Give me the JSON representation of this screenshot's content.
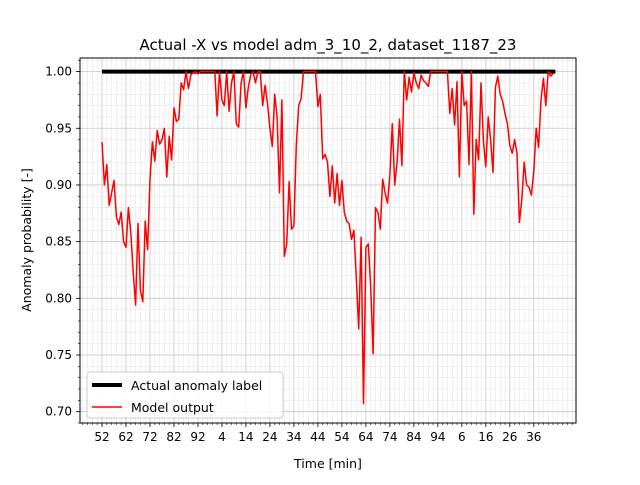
{
  "chart_data": {
    "type": "line",
    "title": "Actual -X vs model adm_3_10_2, dataset_1187_23",
    "xlabel": "Time [min]",
    "ylabel": "Anomaly probability [-]",
    "ylim": [
      0.69,
      1.012
    ],
    "grid": true,
    "legend_position": "lower-left",
    "x_tick_labels": [
      "52",
      "62",
      "72",
      "82",
      "92",
      "4",
      "14",
      "24",
      "34",
      "44",
      "54",
      "64",
      "74",
      "84",
      "94",
      "6",
      "16",
      "26",
      "36"
    ],
    "y_ticks": [
      "0.70",
      "0.75",
      "0.80",
      "0.85",
      "0.90",
      "0.95",
      "1.00"
    ],
    "y_tick_values": [
      0.7,
      0.75,
      0.8,
      0.85,
      0.9,
      0.95,
      1.0
    ],
    "series": [
      {
        "name": "Actual anomaly label",
        "color": "#000000",
        "values": [
          1,
          1,
          1,
          1,
          1,
          1,
          1,
          1,
          1,
          1,
          1,
          1,
          1,
          1,
          1,
          1,
          1,
          1,
          1,
          1,
          1,
          1,
          1,
          1,
          1,
          1,
          1,
          1,
          1,
          1,
          1,
          1,
          1,
          1,
          1,
          1,
          1,
          1,
          1,
          1,
          1,
          1,
          1,
          1,
          1,
          1,
          1,
          1,
          1,
          1,
          1,
          1,
          1,
          1,
          1,
          1,
          1,
          1,
          1,
          1,
          1,
          1,
          1,
          1,
          1,
          1,
          1,
          1,
          1,
          1,
          1,
          1,
          1,
          1,
          1,
          1,
          1,
          1,
          1,
          1,
          1,
          1,
          1,
          1,
          1,
          1,
          1,
          1,
          1,
          1,
          1,
          1,
          1,
          1,
          1,
          1,
          1,
          1,
          1,
          1,
          1,
          1,
          1,
          1,
          1,
          1,
          1,
          1,
          1,
          1,
          1,
          1,
          1,
          1,
          1,
          1,
          1,
          1,
          1,
          1,
          1,
          1,
          1,
          1,
          1,
          1,
          1,
          1,
          1,
          1,
          1,
          1,
          1,
          1,
          1,
          1,
          1,
          1,
          1,
          1,
          1,
          1,
          1,
          1,
          1,
          1,
          1,
          1,
          1,
          1,
          1,
          1,
          1,
          1,
          1,
          1,
          1,
          1,
          1,
          1,
          1,
          1,
          1,
          1,
          1,
          1,
          1,
          1,
          1,
          1,
          1,
          1,
          1,
          1,
          1,
          1,
          1,
          1,
          1,
          1,
          1,
          1,
          1,
          1,
          1,
          1,
          1,
          1,
          1,
          1
        ]
      },
      {
        "name": "Model output",
        "color": "#ff0000",
        "values": [
          0.938,
          0.9,
          0.918,
          0.882,
          0.893,
          0.904,
          0.872,
          0.865,
          0.876,
          0.85,
          0.845,
          0.88,
          0.858,
          0.823,
          0.794,
          0.866,
          0.807,
          0.797,
          0.868,
          0.843,
          0.905,
          0.938,
          0.921,
          0.948,
          0.936,
          0.94,
          0.95,
          0.907,
          0.943,
          0.922,
          0.968,
          0.956,
          0.958,
          0.99,
          0.984,
          1.0,
          0.985,
          0.997,
          0.999,
          1.0,
          0.998,
          1.0,
          1.0,
          1.0,
          1.0,
          1.0,
          1.0,
          1.0,
          0.961,
          1.0,
          0.975,
          0.97,
          1.0,
          0.965,
          0.99,
          1.0,
          0.954,
          0.951,
          0.99,
          1.0,
          0.968,
          0.986,
          0.997,
          1.0,
          0.99,
          1.0,
          1.0,
          0.97,
          0.988,
          0.972,
          0.95,
          0.934,
          0.98,
          0.96,
          0.893,
          0.975,
          0.837,
          0.848,
          0.903,
          0.861,
          0.864,
          0.935,
          0.97,
          0.976,
          1.0,
          1.0,
          1.0,
          1.0,
          1.0,
          1.0,
          0.969,
          0.98,
          0.923,
          0.927,
          0.92,
          0.89,
          0.917,
          0.884,
          0.91,
          0.882,
          0.904,
          0.876,
          0.868,
          0.866,
          0.852,
          0.86,
          0.818,
          0.773,
          0.854,
          0.707,
          0.845,
          0.848,
          0.81,
          0.751,
          0.88,
          0.876,
          0.861,
          0.905,
          0.893,
          0.884,
          0.909,
          0.954,
          0.9,
          0.92,
          0.958,
          0.917,
          1.0,
          0.975,
          0.995,
          0.982,
          0.999,
          0.99,
          0.985,
          0.997,
          0.992,
          0.99,
          0.987,
          1.0,
          1.0,
          1.0,
          1.0,
          1.0,
          1.0,
          1.0,
          1.0,
          0.963,
          0.985,
          0.953,
          0.991,
          0.907,
          1.0,
          0.97,
          0.974,
          0.918,
          1.0,
          0.874,
          0.94,
          0.922,
          0.99,
          0.939,
          0.916,
          0.96,
          0.94,
          0.911,
          0.986,
          0.996,
          0.98,
          0.974,
          0.963,
          0.954,
          0.935,
          0.928,
          0.94,
          0.928,
          0.867,
          0.887,
          0.92,
          0.9,
          0.898,
          0.891,
          0.912,
          0.95,
          0.933,
          0.975,
          0.994,
          0.97,
          1.0,
          0.996,
          0.998
        ]
      }
    ]
  }
}
